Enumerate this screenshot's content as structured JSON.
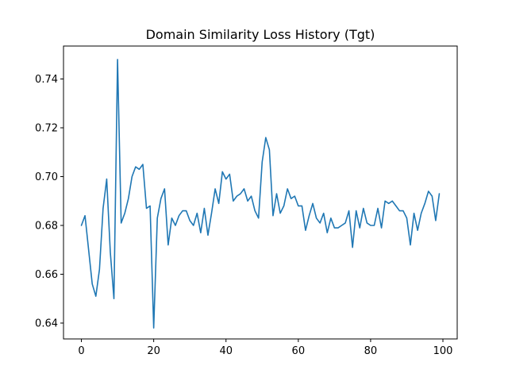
{
  "chart_data": {
    "type": "line",
    "title": "Domain Similarity Loss History (Tgt)",
    "xlabel": "",
    "ylabel": "",
    "xlim": [
      -4.95,
      103.95
    ],
    "ylim": [
      0.6335,
      0.7535
    ],
    "xticks": [
      0,
      20,
      40,
      60,
      80,
      100
    ],
    "yticks": [
      0.64,
      0.66,
      0.68,
      0.7,
      0.72,
      0.74
    ],
    "xtick_labels": [
      "0",
      "20",
      "40",
      "60",
      "80",
      "100"
    ],
    "ytick_labels": [
      "0.64",
      "0.66",
      "0.68",
      "0.70",
      "0.72",
      "0.74"
    ],
    "grid": false,
    "series": [
      {
        "color": "#1f77b4",
        "x": [
          0,
          1,
          2,
          3,
          4,
          5,
          6,
          7,
          8,
          9,
          10,
          11,
          12,
          13,
          14,
          15,
          16,
          17,
          18,
          19,
          20,
          21,
          22,
          23,
          24,
          25,
          26,
          27,
          28,
          29,
          30,
          31,
          32,
          33,
          34,
          35,
          36,
          37,
          38,
          39,
          40,
          41,
          42,
          43,
          44,
          45,
          46,
          47,
          48,
          49,
          50,
          51,
          52,
          53,
          54,
          55,
          56,
          57,
          58,
          59,
          60,
          61,
          62,
          63,
          64,
          65,
          66,
          67,
          68,
          69,
          70,
          71,
          72,
          73,
          74,
          75,
          76,
          77,
          78,
          79,
          80,
          81,
          82,
          83,
          84,
          85,
          86,
          87,
          88,
          89,
          90,
          91,
          92,
          93,
          94,
          95,
          96,
          97,
          98,
          99
        ],
        "values": [
          0.68,
          0.684,
          0.67,
          0.656,
          0.651,
          0.662,
          0.687,
          0.699,
          0.669,
          0.65,
          0.748,
          0.681,
          0.685,
          0.691,
          0.7,
          0.704,
          0.703,
          0.705,
          0.687,
          0.688,
          0.638,
          0.683,
          0.691,
          0.695,
          0.672,
          0.683,
          0.68,
          0.684,
          0.686,
          0.686,
          0.682,
          0.68,
          0.685,
          0.677,
          0.687,
          0.676,
          0.685,
          0.695,
          0.689,
          0.702,
          0.699,
          0.701,
          0.69,
          0.692,
          0.693,
          0.695,
          0.69,
          0.692,
          0.686,
          0.683,
          0.706,
          0.716,
          0.711,
          0.684,
          0.693,
          0.685,
          0.688,
          0.695,
          0.691,
          0.692,
          0.688,
          0.688,
          0.678,
          0.684,
          0.689,
          0.683,
          0.681,
          0.685,
          0.677,
          0.683,
          0.679,
          0.679,
          0.68,
          0.681,
          0.686,
          0.671,
          0.686,
          0.679,
          0.687,
          0.681,
          0.68,
          0.68,
          0.687,
          0.679,
          0.69,
          0.689,
          0.69,
          0.688,
          0.686,
          0.686,
          0.683,
          0.672,
          0.685,
          0.678,
          0.685,
          0.689,
          0.694,
          0.692,
          0.682,
          0.693
        ]
      }
    ]
  }
}
